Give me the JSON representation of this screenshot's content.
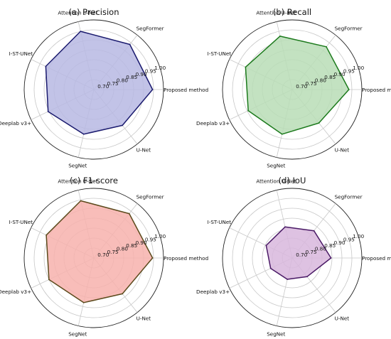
{
  "chart_data": [
    {
      "type": "radar",
      "title": "(a) Precision",
      "categories": [
        "Proposed method",
        "SegFormer",
        "Attention U-Net",
        "I-ST-UNet",
        "Deeplab v3+",
        "SegNet",
        "U-Net"
      ],
      "ticks": [
        "0.70",
        "0.75",
        "0.80",
        "0.85",
        "0.90",
        "0.95",
        "1.00"
      ],
      "rlim": [
        0.65,
        1.0
      ],
      "grid": true,
      "series": [
        {
          "values": [
            0.945,
            0.94,
            0.95,
            0.918,
            0.905,
            0.88,
            0.88
          ]
        }
      ],
      "fill_color": "#b7b9e3",
      "line_color": "#1a1a6e"
    },
    {
      "type": "radar",
      "title": "(b) Recall",
      "categories": [
        "Proposed method",
        "SegFormer",
        "Attention U-Net",
        "I-ST-UNet",
        "Deeplab v3+",
        "SegNet",
        "U-Net"
      ],
      "ticks": [
        "0.70",
        "0.75",
        "0.80",
        "0.85",
        "0.90",
        "0.95",
        "1.00"
      ],
      "rlim": [
        0.65,
        1.0
      ],
      "grid": true,
      "series": [
        {
          "values": [
            0.935,
            0.925,
            0.925,
            0.91,
            0.895,
            0.88,
            0.865
          ]
        }
      ],
      "fill_color": "#b9ddb6",
      "line_color": "#1c7a1c"
    },
    {
      "type": "radar",
      "title": "(c) F1-score",
      "categories": [
        "Proposed method",
        "SegFormer",
        "Attention U-Net",
        "I-ST-UNet",
        "Deeplab v3+",
        "SegNet",
        "U-Net"
      ],
      "ticks": [
        "0.70",
        "0.75",
        "0.80",
        "0.85",
        "0.90",
        "0.95",
        "1.00"
      ],
      "rlim": [
        0.65,
        1.0
      ],
      "grid": true,
      "series": [
        {
          "values": [
            0.945,
            0.935,
            0.945,
            0.915,
            0.9,
            0.88,
            0.88
          ]
        }
      ],
      "fill_color": "#f7b2ad",
      "line_color": "#5c4a1c"
    },
    {
      "type": "radar",
      "title": "(d) IoU",
      "categories": [
        "Proposed method",
        "SegFormer",
        "Attention U-Net",
        "I-ST-UNet",
        "Deeplab v3+",
        "SegNet",
        "U-Net"
      ],
      "ticks": [
        "0.70",
        "0.75",
        "0.80",
        "0.85",
        "0.90",
        "0.95",
        "1.00"
      ],
      "rlim": [
        0.65,
        1.0
      ],
      "grid": true,
      "series": [
        {
          "values": [
            0.845,
            0.825,
            0.81,
            0.795,
            0.77,
            0.76,
            0.77
          ]
        }
      ],
      "fill_color": "#d8b7dd",
      "line_color": "#4a1a66"
    }
  ]
}
